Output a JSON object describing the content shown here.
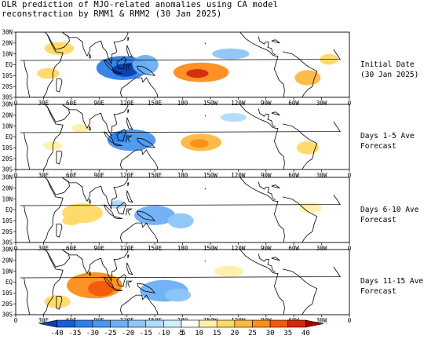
{
  "title": {
    "line1": "OLR prediction of MJO-related anomalies using CA model",
    "line2": "reconstraction by RMM1 & RMM2 (30 Jan 2025)"
  },
  "axes": {
    "lat_labels": [
      "30N",
      "20N",
      "10N",
      "EQ",
      "10S",
      "20S",
      "30S"
    ],
    "lon_labels": [
      "0",
      "30E",
      "60E",
      "90E",
      "120E",
      "150E",
      "180",
      "150W",
      "120W",
      "90W",
      "60W",
      "30W",
      "0"
    ]
  },
  "panels": [
    {
      "label_line1": "Initial Date",
      "label_line2": "(30 Jan 2025)"
    },
    {
      "label_line1": "Days 1-5 Ave",
      "label_line2": "Forecast"
    },
    {
      "label_line1": "Days 6-10 Ave",
      "label_line2": "Forecast"
    },
    {
      "label_line1": "Days 11-15 Ave",
      "label_line2": "Forecast"
    }
  ],
  "colorbar": {
    "labels": [
      "-40",
      "-35",
      "-30",
      "-25",
      "-20",
      "-15",
      "-10",
      "-5",
      "5",
      "10",
      "15",
      "20",
      "25",
      "30",
      "35",
      "40"
    ],
    "colors": [
      "#0a3fb0",
      "#1560d8",
      "#2e7fe8",
      "#4a96ee",
      "#6caff4",
      "#8cc6f8",
      "#aedcfb",
      "#cceefd",
      "#ffffff",
      "#fff0a8",
      "#ffd966",
      "#ffb840",
      "#ff8c1a",
      "#f25a0a",
      "#d42a0a",
      "#a80000"
    ]
  },
  "map_data": {
    "anomalies": [
      [
        {
          "lon": 115,
          "lat": -3,
          "rx": 28,
          "ry": 11,
          "v": -25
        },
        {
          "lon": 118,
          "lat": -5,
          "rx": 14,
          "ry": 6,
          "v": -35
        },
        {
          "lon": 140,
          "lat": 0,
          "rx": 14,
          "ry": 9,
          "v": -15
        },
        {
          "lon": 200,
          "lat": -7,
          "rx": 30,
          "ry": 9,
          "v": 20
        },
        {
          "lon": 196,
          "lat": -8,
          "rx": 12,
          "ry": 4,
          "v": 30
        },
        {
          "lon": 232,
          "lat": 10,
          "rx": 20,
          "ry": 5,
          "v": -10
        },
        {
          "lon": 47,
          "lat": 15,
          "rx": 16,
          "ry": 6,
          "v": 12
        },
        {
          "lon": 35,
          "lat": -8,
          "rx": 12,
          "ry": 5,
          "v": 10
        },
        {
          "lon": 315,
          "lat": -12,
          "rx": 14,
          "ry": 7,
          "v": 15
        },
        {
          "lon": 338,
          "lat": 5,
          "rx": 10,
          "ry": 5,
          "v": 10
        }
      ],
      [
        {
          "lon": 125,
          "lat": -3,
          "rx": 26,
          "ry": 10,
          "v": -20
        },
        {
          "lon": 112,
          "lat": 0,
          "rx": 10,
          "ry": 5,
          "v": -25
        },
        {
          "lon": 200,
          "lat": -5,
          "rx": 22,
          "ry": 8,
          "v": 15
        },
        {
          "lon": 198,
          "lat": -6,
          "rx": 10,
          "ry": 4,
          "v": 20
        },
        {
          "lon": 235,
          "lat": 18,
          "rx": 14,
          "ry": 4,
          "v": -8
        },
        {
          "lon": 315,
          "lat": -10,
          "rx": 12,
          "ry": 6,
          "v": 12
        },
        {
          "lon": 70,
          "lat": 8,
          "rx": 10,
          "ry": 4,
          "v": 8
        },
        {
          "lon": 40,
          "lat": -8,
          "rx": 10,
          "ry": 4,
          "v": 8
        }
      ],
      [
        {
          "lon": 150,
          "lat": -5,
          "rx": 22,
          "ry": 9,
          "v": -15
        },
        {
          "lon": 178,
          "lat": -10,
          "rx": 14,
          "ry": 7,
          "v": -10
        },
        {
          "lon": 72,
          "lat": -3,
          "rx": 22,
          "ry": 9,
          "v": 12
        },
        {
          "lon": 60,
          "lat": -10,
          "rx": 10,
          "ry": 4,
          "v": 10
        },
        {
          "lon": 318,
          "lat": 2,
          "rx": 12,
          "ry": 5,
          "v": 8
        },
        {
          "lon": 110,
          "lat": 5,
          "rx": 8,
          "ry": 4,
          "v": -8
        }
      ],
      [
        {
          "lon": 85,
          "lat": -3,
          "rx": 30,
          "ry": 12,
          "v": 20
        },
        {
          "lon": 92,
          "lat": -6,
          "rx": 14,
          "ry": 7,
          "v": 25
        },
        {
          "lon": 160,
          "lat": -8,
          "rx": 26,
          "ry": 10,
          "v": -15
        },
        {
          "lon": 175,
          "lat": -12,
          "rx": 14,
          "ry": 6,
          "v": -12
        },
        {
          "lon": 45,
          "lat": -18,
          "rx": 14,
          "ry": 6,
          "v": 10
        },
        {
          "lon": 230,
          "lat": 10,
          "rx": 16,
          "ry": 5,
          "v": 8
        }
      ]
    ]
  }
}
